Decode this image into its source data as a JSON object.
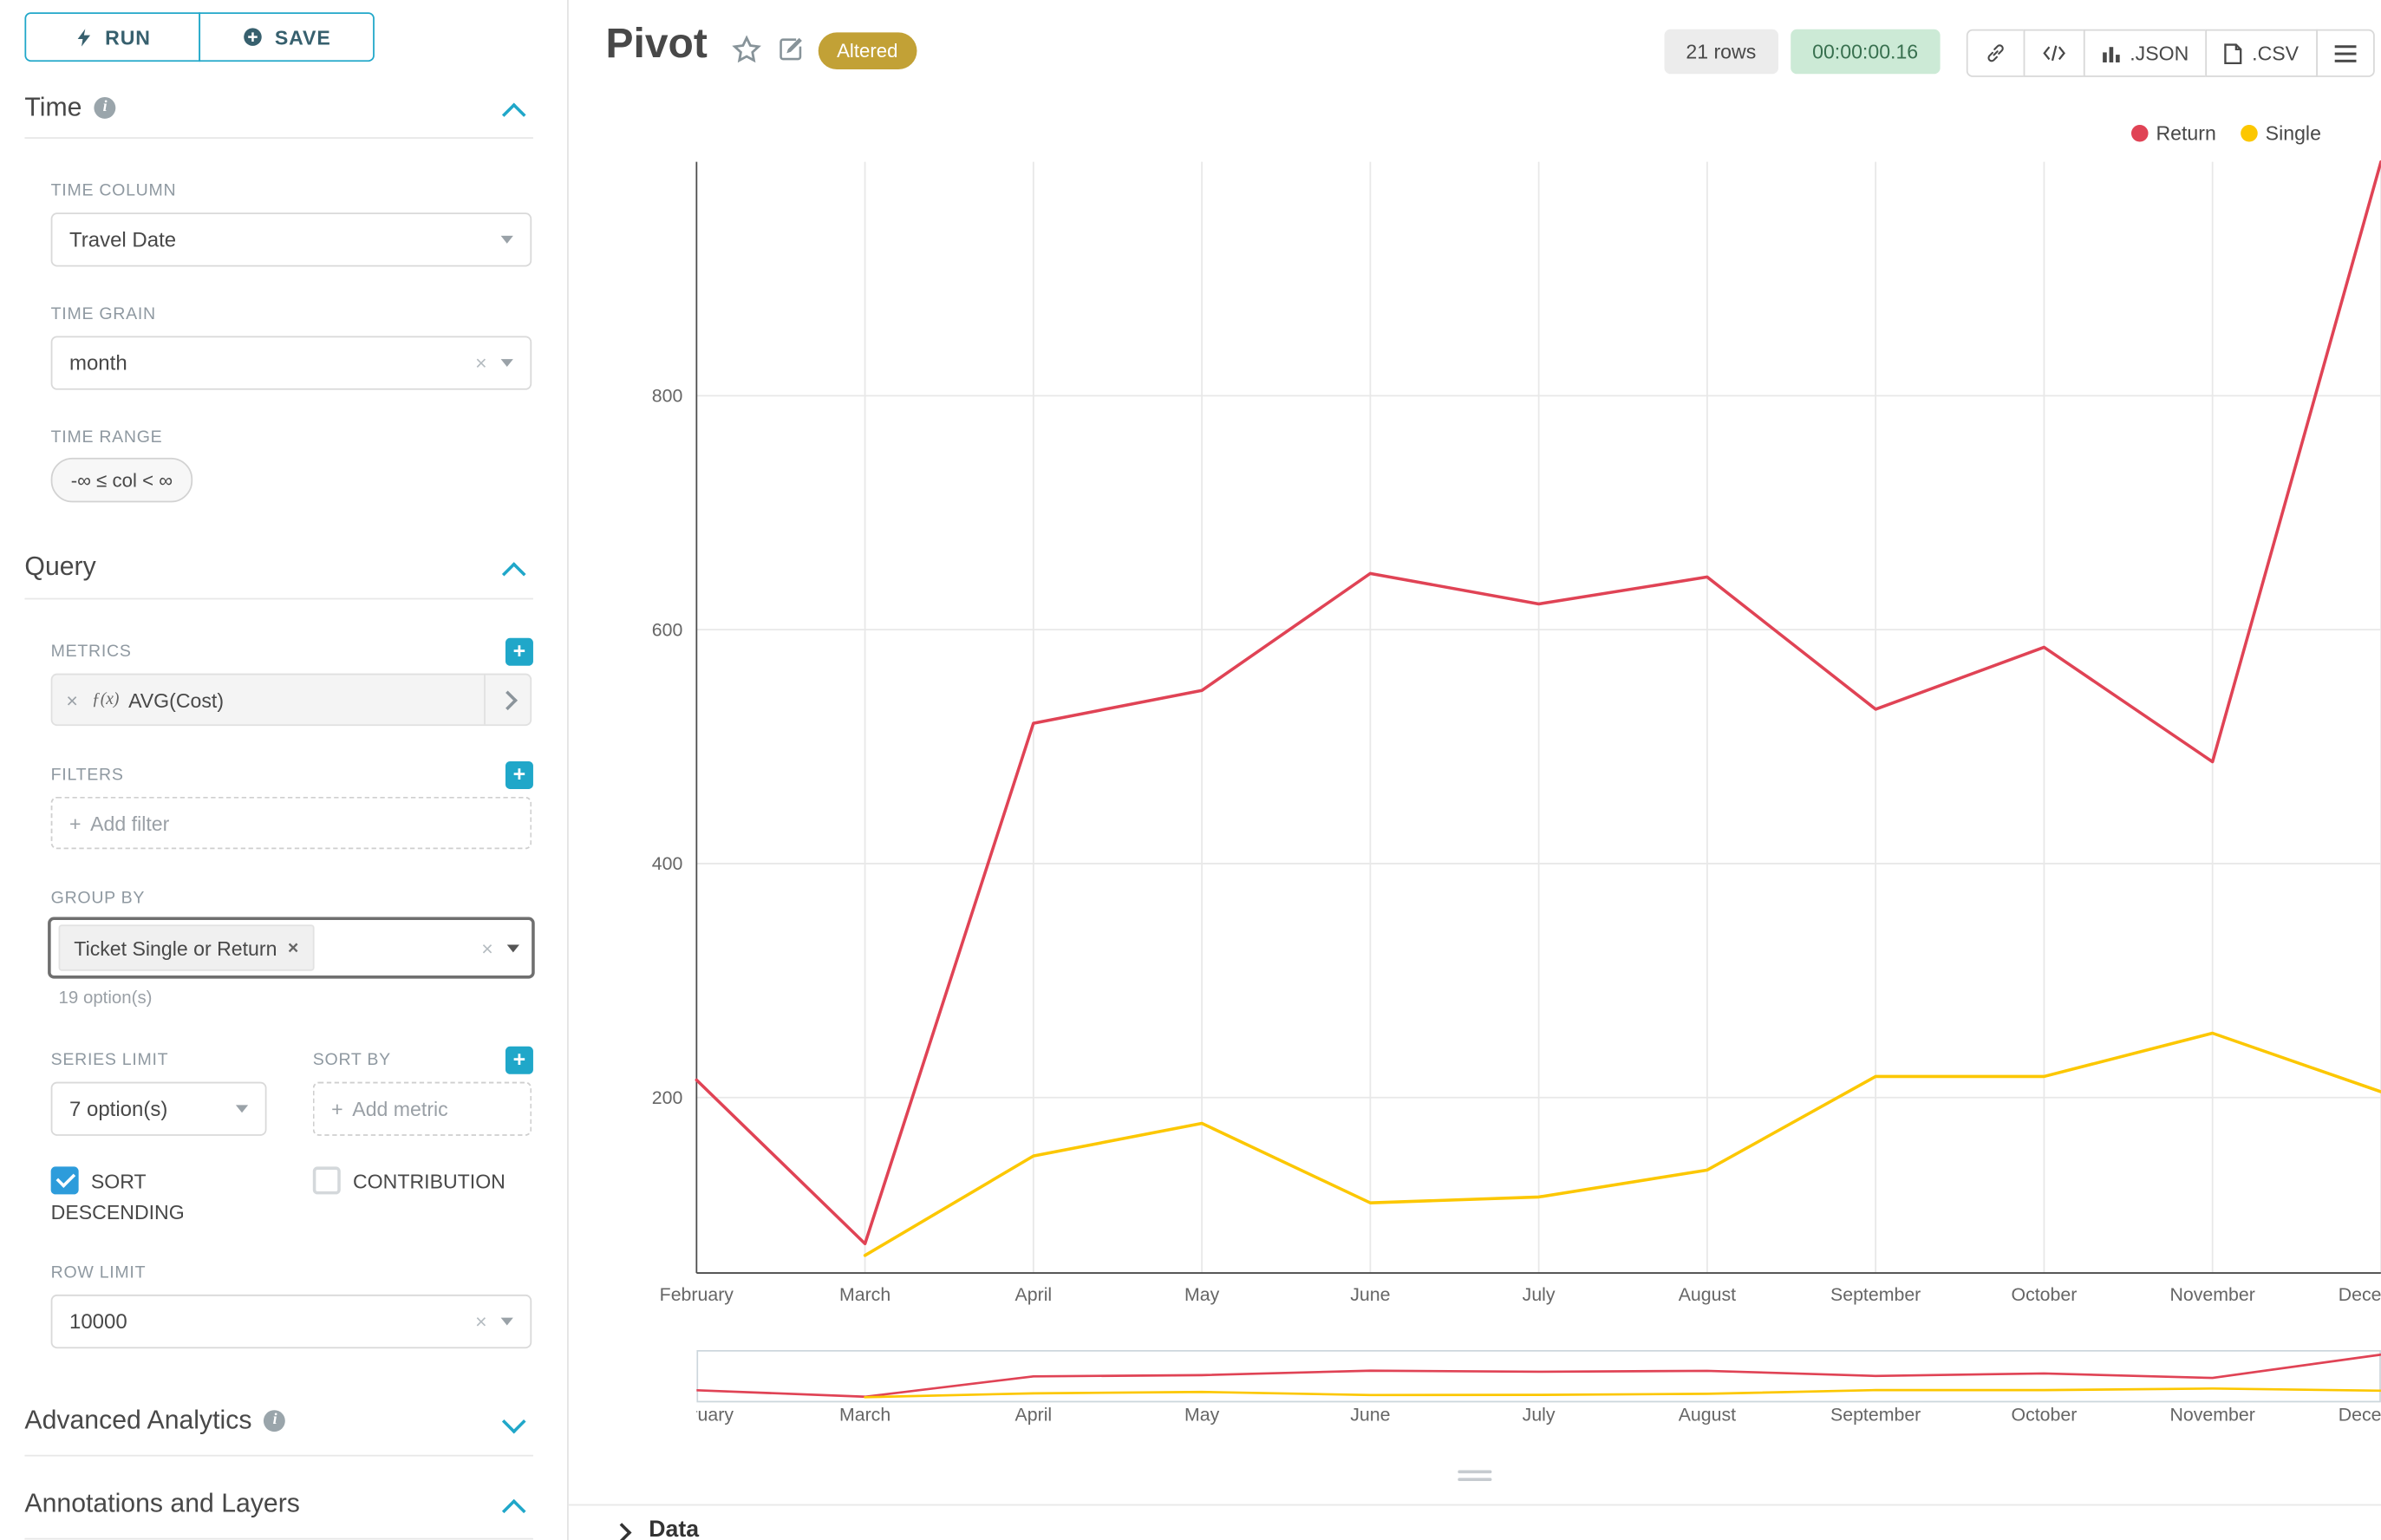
{
  "colors": {
    "accent": "#20a7c9",
    "check": "#2d9cdb",
    "altered_bg": "#c2a136",
    "timer_bg": "#ccead6",
    "timer_text": "#38704f",
    "rows_bg": "#ececec"
  },
  "icons": {
    "close": "×",
    "plus": "+",
    "fx": "ƒ(x)"
  },
  "sidebar": {
    "run_label": "RUN",
    "save_label": "SAVE",
    "time": {
      "title": "Time",
      "time_column_label": "TIME COLUMN",
      "time_column_value": "Travel Date",
      "time_grain_label": "TIME GRAIN",
      "time_grain_value": "month",
      "time_range_label": "TIME RANGE",
      "time_range_value": "-∞ ≤ col < ∞"
    },
    "query": {
      "title": "Query",
      "metrics_label": "METRICS",
      "metric_value": "AVG(Cost)",
      "filters_label": "FILTERS",
      "add_filter_placeholder": "Add filter",
      "group_by_label": "GROUP BY",
      "group_by_value": "Ticket Single or Return",
      "group_by_hint": "19 option(s)",
      "series_limit_label": "SERIES LIMIT",
      "series_limit_value": "7 option(s)",
      "sort_by_label": "SORT BY",
      "add_metric_placeholder": "Add metric",
      "sort_descending_label": "SORT DESCENDING",
      "contribution_label": "CONTRIBUTION",
      "row_limit_label": "ROW LIMIT",
      "row_limit_value": "10000"
    },
    "advanced_title": "Advanced Analytics",
    "annotations_title": "Annotations and Layers"
  },
  "header": {
    "title": "Pivot",
    "altered_badge": "Altered",
    "rows_badge": "21 rows",
    "timer_badge": "00:00:00.16",
    "json_label": ".JSON",
    "csv_label": ".CSV"
  },
  "data_panel": {
    "title": "Data"
  },
  "chart_data": {
    "type": "line",
    "title": "",
    "xlabel": "",
    "ylabel": "",
    "x": [
      "February",
      "March",
      "April",
      "May",
      "June",
      "July",
      "August",
      "September",
      "October",
      "November",
      "December"
    ],
    "series": [
      {
        "name": "Return",
        "color": "#e04355",
        "values": [
          215,
          75,
          520,
          548,
          648,
          622,
          645,
          532,
          585,
          487,
          1000
        ]
      },
      {
        "name": "Single",
        "color": "#fcc700",
        "values": [
          null,
          65,
          150,
          178,
          110,
          115,
          138,
          218,
          218,
          255,
          205
        ]
      }
    ],
    "yticks": [
      200,
      400,
      600,
      800
    ],
    "ylim": [
      50,
      1000
    ],
    "grid": true,
    "legend_position": "top-right",
    "has_minimap": true
  }
}
